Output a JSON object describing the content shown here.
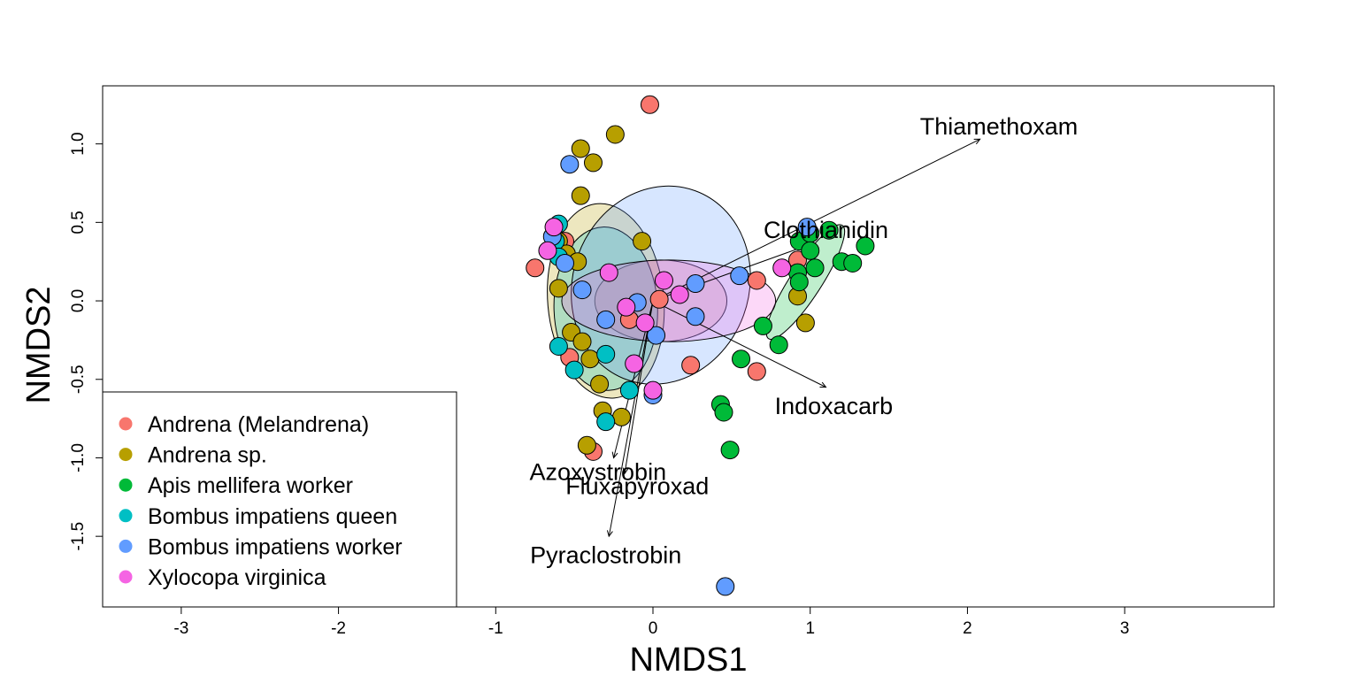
{
  "chart_data": {
    "type": "scatter",
    "title": "",
    "xlabel": "NMDS1",
    "ylabel": "NMDS2",
    "xlim": [
      -3.5,
      3.95
    ],
    "ylim": [
      -1.95,
      1.37
    ],
    "x_ticks": [
      -3,
      -2,
      -1,
      0,
      1,
      2,
      3
    ],
    "y_ticks": [
      -1.5,
      -1.0,
      -0.5,
      0.0,
      0.5,
      1.0
    ],
    "x_tick_labels": [
      "-3",
      "-2",
      "-1",
      "0",
      "1",
      "2",
      "3"
    ],
    "y_tick_labels": [
      "-1.5",
      "-1.0",
      "-0.5",
      "0.0",
      "0.5",
      "1.0"
    ],
    "grid": false,
    "legend_position": "bottom-left",
    "series": [
      {
        "name": "Andrena (Melandrena)",
        "color": "#F8766D",
        "points": [
          [
            -0.02,
            1.25
          ],
          [
            -0.75,
            0.21
          ],
          [
            -0.56,
            0.38
          ],
          [
            -0.53,
            -0.36
          ],
          [
            -0.38,
            -0.96
          ],
          [
            0.66,
            0.13
          ],
          [
            0.66,
            -0.45
          ],
          [
            0.92,
            0.26
          ],
          [
            0.24,
            -0.41
          ],
          [
            0.04,
            0.01
          ],
          [
            -0.15,
            -0.12
          ]
        ]
      },
      {
        "name": "Andrena sp.",
        "color": "#B79F00",
        "points": [
          [
            -0.46,
            0.97
          ],
          [
            -0.38,
            0.88
          ],
          [
            -0.24,
            1.06
          ],
          [
            -0.46,
            0.67
          ],
          [
            -0.6,
            0.38
          ],
          [
            -0.55,
            0.3
          ],
          [
            -0.48,
            0.25
          ],
          [
            -0.6,
            0.08
          ],
          [
            -0.52,
            -0.2
          ],
          [
            -0.45,
            -0.26
          ],
          [
            -0.4,
            -0.37
          ],
          [
            -0.34,
            -0.53
          ],
          [
            -0.32,
            -0.7
          ],
          [
            -0.2,
            -0.74
          ],
          [
            -0.42,
            -0.92
          ],
          [
            -0.07,
            0.38
          ],
          [
            0.97,
            -0.14
          ],
          [
            0.92,
            0.03
          ]
        ]
      },
      {
        "name": "Apis mellifera worker",
        "color": "#00BA38",
        "points": [
          [
            0.93,
            0.38
          ],
          [
            1.0,
            0.43
          ],
          [
            1.12,
            0.45
          ],
          [
            1.35,
            0.35
          ],
          [
            1.0,
            0.32
          ],
          [
            1.2,
            0.25
          ],
          [
            1.27,
            0.24
          ],
          [
            1.03,
            0.21
          ],
          [
            0.92,
            0.18
          ],
          [
            0.93,
            0.12
          ],
          [
            0.7,
            -0.16
          ],
          [
            0.8,
            -0.28
          ],
          [
            0.56,
            -0.37
          ],
          [
            0.43,
            -0.66
          ],
          [
            0.45,
            -0.71
          ],
          [
            0.49,
            -0.95
          ]
        ]
      },
      {
        "name": "Bombus impatiens queen",
        "color": "#00BFC4",
        "points": [
          [
            -0.6,
            0.49
          ],
          [
            -0.62,
            0.38
          ],
          [
            -0.6,
            0.28
          ],
          [
            -0.6,
            -0.29
          ],
          [
            -0.5,
            -0.44
          ],
          [
            -0.3,
            -0.77
          ],
          [
            -0.15,
            -0.57
          ],
          [
            -0.3,
            -0.34
          ]
        ]
      },
      {
        "name": "Bombus impatiens worker",
        "color": "#619CFF",
        "points": [
          [
            -0.53,
            0.87
          ],
          [
            -0.64,
            0.41
          ],
          [
            -0.56,
            0.24
          ],
          [
            -0.45,
            0.07
          ],
          [
            0.98,
            0.47
          ],
          [
            0.55,
            0.16
          ],
          [
            0.27,
            0.11
          ],
          [
            0.27,
            -0.1
          ],
          [
            0.46,
            -1.82
          ],
          [
            0.0,
            -0.6
          ],
          [
            -0.3,
            -0.12
          ],
          [
            0.02,
            -0.22
          ],
          [
            -0.1,
            -0.01
          ]
        ]
      },
      {
        "name": "Xylocopa virginica",
        "color": "#F564E3",
        "points": [
          [
            -0.63,
            0.47
          ],
          [
            -0.67,
            0.32
          ],
          [
            0.82,
            0.21
          ],
          [
            0.07,
            0.13
          ],
          [
            0.17,
            0.04
          ],
          [
            -0.17,
            -0.04
          ],
          [
            -0.05,
            -0.14
          ],
          [
            0.0,
            -0.57
          ],
          [
            -0.12,
            -0.4
          ],
          [
            -0.28,
            0.18
          ]
        ]
      }
    ],
    "ellipses": [
      {
        "series": "Andrena (Melandrena)",
        "color": "#F8766D",
        "cx": 0.05,
        "cy": 0.0,
        "rx": 0.42,
        "ry": 0.26,
        "angle": 0
      },
      {
        "series": "Andrena sp.",
        "color": "#B79F00",
        "cx": -0.3,
        "cy": 0.0,
        "rx": 0.62,
        "ry": 0.37,
        "angle": 95
      },
      {
        "series": "Apis mellifera worker",
        "color": "#00BA38",
        "cx": 0.97,
        "cy": 0.12,
        "rx": 0.43,
        "ry": 0.1,
        "angle": 57
      },
      {
        "series": "Bombus impatiens queen",
        "color": "#00BFC4",
        "cx": -0.3,
        "cy": -0.05,
        "rx": 0.52,
        "ry": 0.33,
        "angle": 92
      },
      {
        "series": "Bombus impatiens worker",
        "color": "#619CFF",
        "cx": 0.05,
        "cy": 0.1,
        "rx": 0.56,
        "ry": 0.64,
        "angle": -20
      },
      {
        "series": "Xylocopa virginica",
        "color": "#F564E3",
        "cx": 0.1,
        "cy": 0.0,
        "rx": 0.68,
        "ry": 0.26,
        "angle": 0
      }
    ],
    "vectors": [
      {
        "name": "Thiamethoxam",
        "end": [
          2.08,
          1.03
        ],
        "label_pos": [
          2.2,
          1.11
        ]
      },
      {
        "name": "Clothianidin",
        "end": [
          1.0,
          0.36
        ],
        "label_pos": [
          1.1,
          0.45
        ]
      },
      {
        "name": "Indoxacarb",
        "end": [
          1.1,
          -0.55
        ],
        "label_pos": [
          1.15,
          -0.67
        ]
      },
      {
        "name": "Azoxystrobin",
        "end": [
          -0.25,
          -1.0
        ],
        "label_pos": [
          -0.35,
          -1.09
        ]
      },
      {
        "name": "Fluxapyroxad",
        "end": [
          -0.18,
          -1.1
        ],
        "label_pos": [
          -0.1,
          -1.18
        ]
      },
      {
        "name": "Pyraclostrobin",
        "end": [
          -0.28,
          -1.5
        ],
        "label_pos": [
          -0.3,
          -1.62
        ]
      }
    ]
  }
}
